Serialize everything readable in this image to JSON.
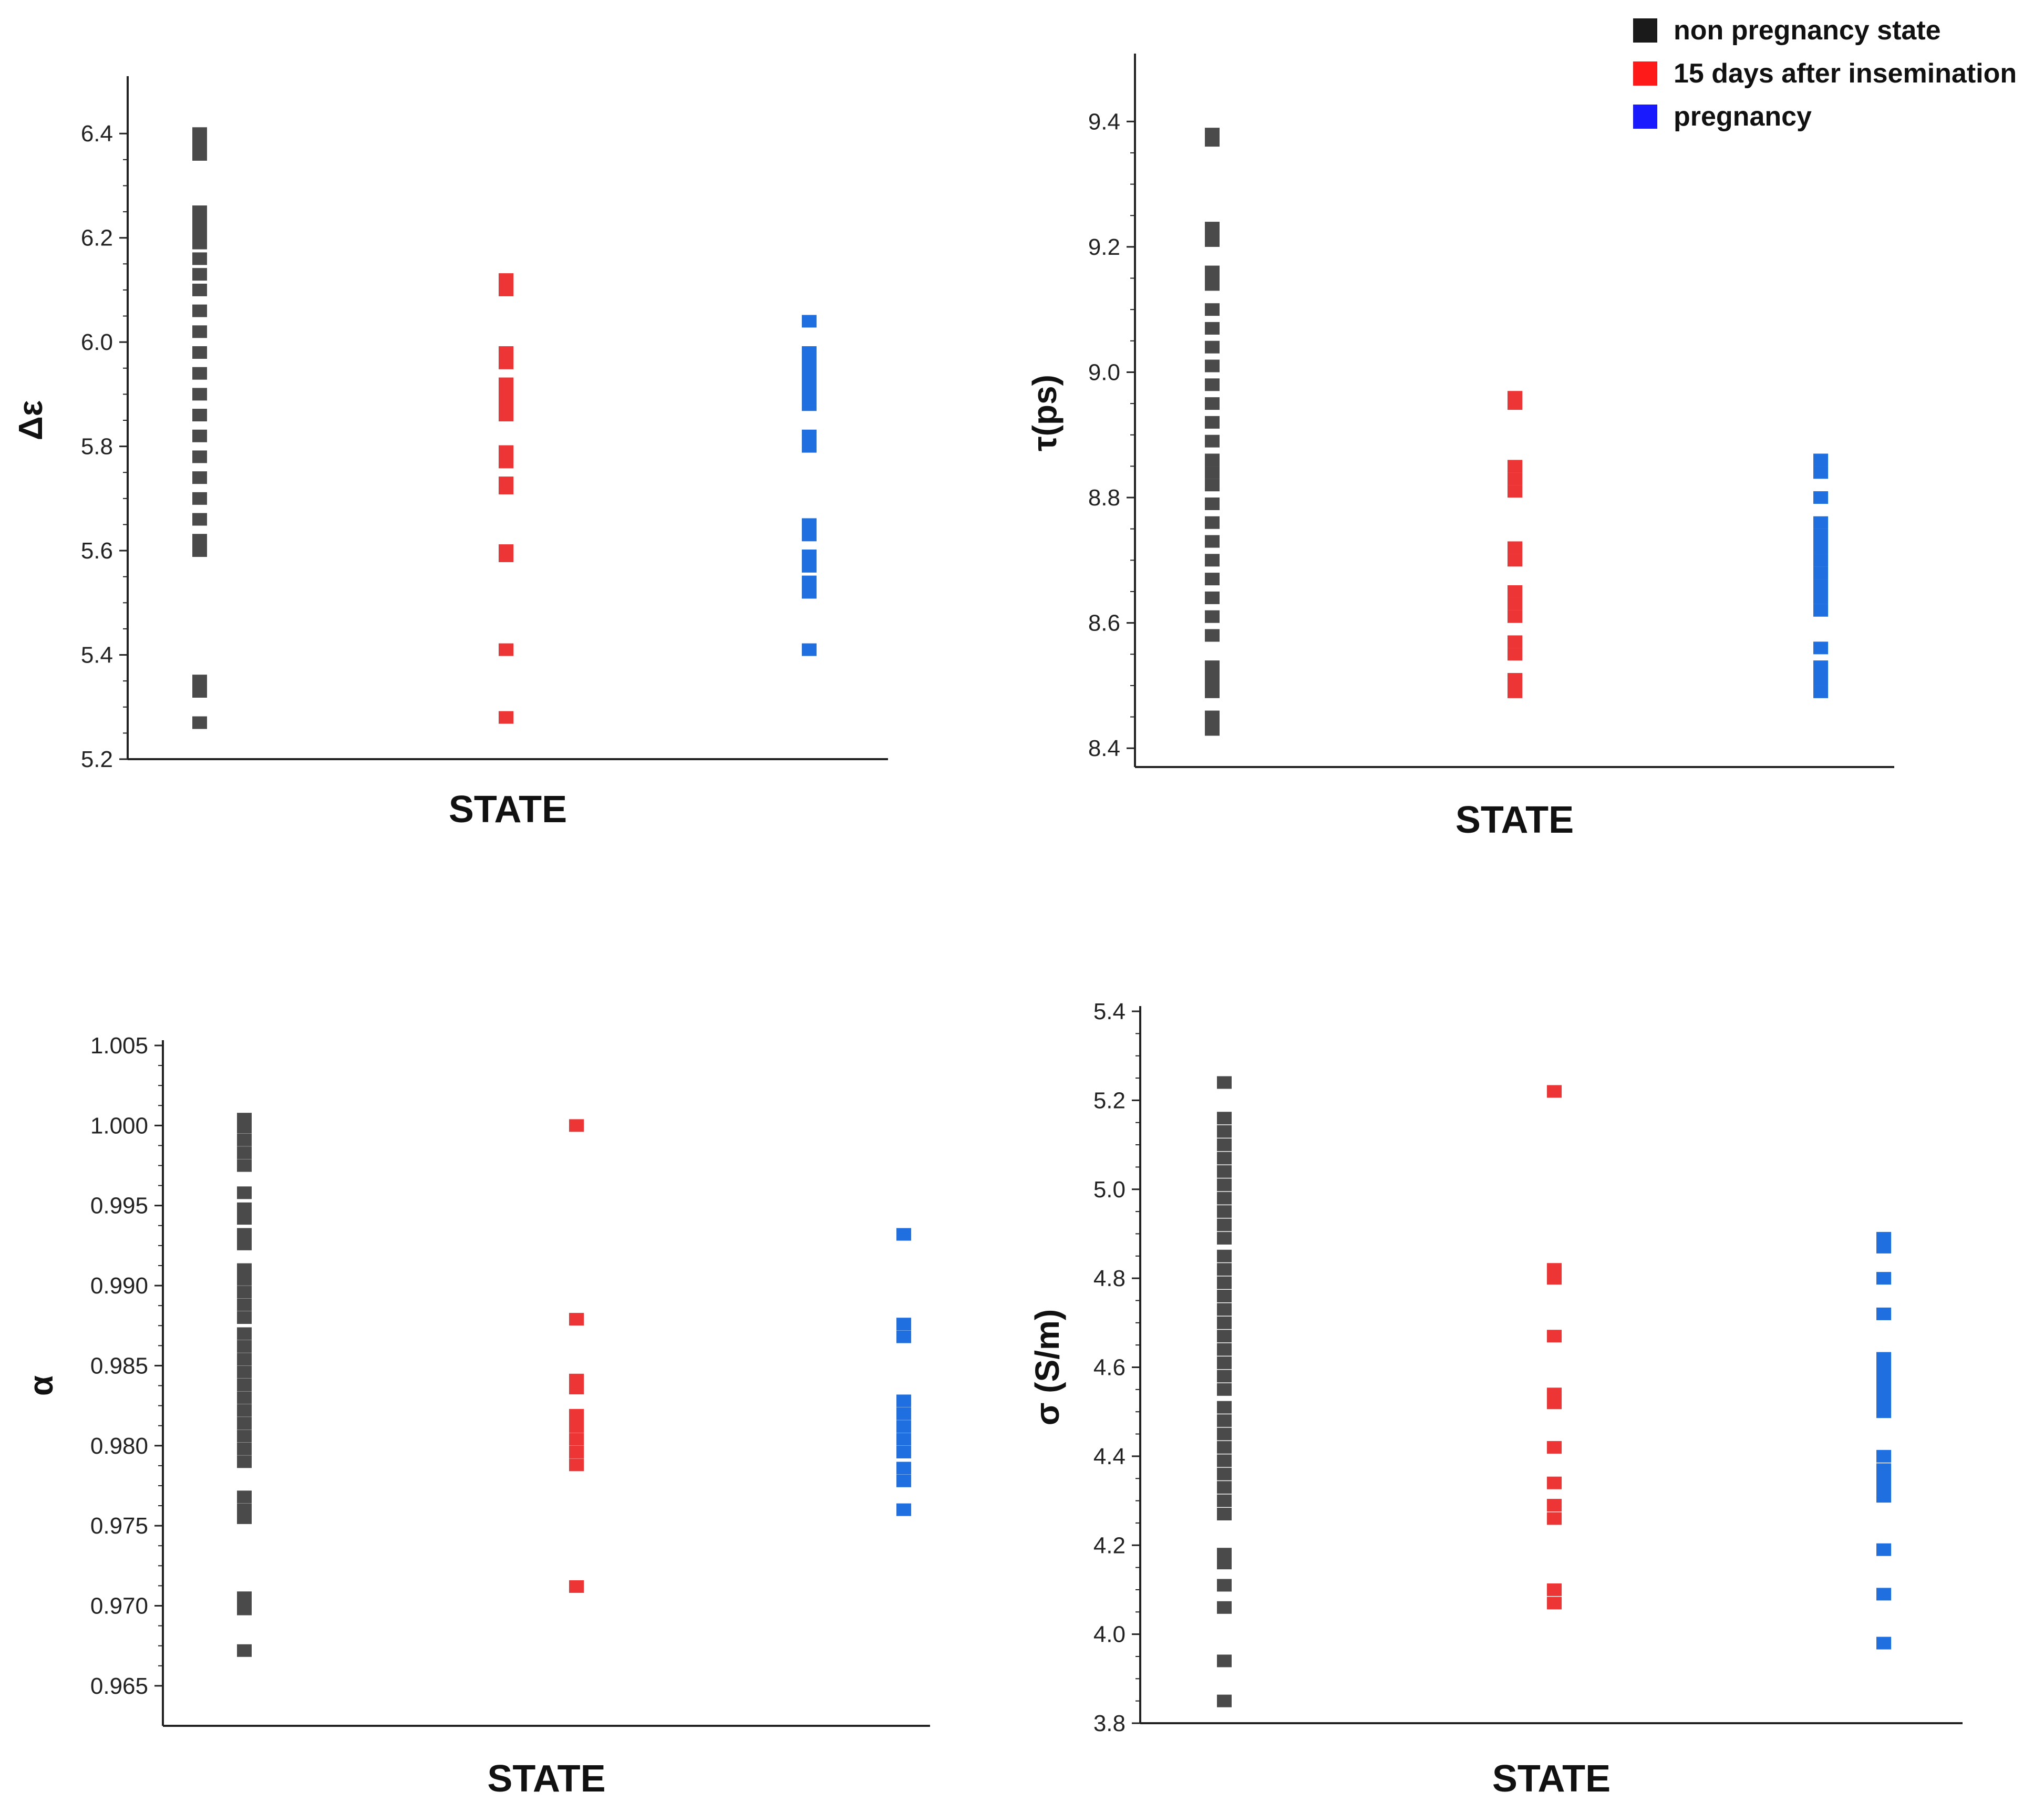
{
  "legend": [
    {
      "label": "non pregnancy state",
      "color": "#1a1a1a"
    },
    {
      "label": "15 days after insemination",
      "color": "#ff1a1a"
    },
    {
      "label": "pregnancy",
      "color": "#1a1aff"
    }
  ],
  "series_colors": [
    "#4a4a4a",
    "#ee3535",
    "#1f6fe0"
  ],
  "chart_data": [
    {
      "type": "scatter",
      "title": "",
      "xlabel": "STATE",
      "ylabel": "Δε",
      "ylim": [
        5.2,
        6.5
      ],
      "yticks": [
        5.2,
        5.4,
        5.6,
        5.8,
        6.0,
        6.2,
        6.4
      ],
      "tick_decimals": 1,
      "minor_ticks": true,
      "categories": [
        "non pregnancy state",
        "15 days after insemination",
        "pregnancy"
      ],
      "series": [
        {
          "name": "non pregnancy state",
          "values": [
            5.27,
            5.33,
            5.35,
            5.6,
            5.62,
            5.66,
            5.7,
            5.74,
            5.78,
            5.82,
            5.86,
            5.9,
            5.94,
            5.98,
            6.02,
            6.06,
            6.1,
            6.13,
            6.16,
            6.19,
            6.21,
            6.23,
            6.25,
            6.36,
            6.38,
            6.4
          ]
        },
        {
          "name": "15 days after insemination",
          "values": [
            5.28,
            5.41,
            5.59,
            5.6,
            5.72,
            5.73,
            5.77,
            5.79,
            5.86,
            5.88,
            5.9,
            5.92,
            5.96,
            5.98,
            6.1,
            6.12
          ]
        },
        {
          "name": "pregnancy",
          "values": [
            5.41,
            5.52,
            5.54,
            5.57,
            5.59,
            5.63,
            5.65,
            5.8,
            5.82,
            5.88,
            5.9,
            5.92,
            5.94,
            5.96,
            5.98,
            6.04
          ]
        }
      ]
    },
    {
      "type": "scatter",
      "title": "",
      "xlabel": "STATE",
      "ylabel": "τ(ps)",
      "ylim": [
        8.37,
        9.5
      ],
      "yticks": [
        8.4,
        8.6,
        8.8,
        9.0,
        9.2,
        9.4
      ],
      "tick_decimals": 1,
      "minor_ticks": true,
      "categories": [
        "non pregnancy state",
        "15 days after insemination",
        "pregnancy"
      ],
      "series": [
        {
          "name": "non pregnancy state",
          "values": [
            8.43,
            8.45,
            8.49,
            8.51,
            8.53,
            8.58,
            8.61,
            8.64,
            8.67,
            8.7,
            8.73,
            8.76,
            8.79,
            8.82,
            8.84,
            8.86,
            8.89,
            8.92,
            8.95,
            8.98,
            9.01,
            9.04,
            9.07,
            9.1,
            9.14,
            9.16,
            9.21,
            9.23,
            9.37,
            9.38
          ]
        },
        {
          "name": "15 days after insemination",
          "values": [
            8.49,
            8.51,
            8.55,
            8.57,
            8.61,
            8.63,
            8.65,
            8.7,
            8.72,
            8.81,
            8.83,
            8.85,
            8.95,
            8.96
          ]
        },
        {
          "name": "pregnancy",
          "values": [
            8.49,
            8.51,
            8.53,
            8.56,
            8.62,
            8.64,
            8.66,
            8.68,
            8.7,
            8.72,
            8.74,
            8.76,
            8.8,
            8.84,
            8.86
          ]
        }
      ]
    },
    {
      "type": "scatter",
      "title": "",
      "xlabel": "STATE",
      "ylabel": "α",
      "ylim": [
        0.9625,
        1.005
      ],
      "yticks": [
        0.965,
        0.97,
        0.975,
        0.98,
        0.985,
        0.99,
        0.995,
        1.0,
        1.005
      ],
      "tick_decimals": 3,
      "minor_ticks": true,
      "categories": [
        "non pregnancy state",
        "15 days after insemination",
        "pregnancy"
      ],
      "series": [
        {
          "name": "non pregnancy state",
          "values": [
            0.9672,
            0.9698,
            0.9705,
            0.9755,
            0.976,
            0.9768,
            0.979,
            0.9798,
            0.9806,
            0.9814,
            0.9822,
            0.983,
            0.9838,
            0.9846,
            0.9854,
            0.9862,
            0.987,
            0.988,
            0.9888,
            0.9896,
            0.9904,
            0.991,
            0.9926,
            0.9932,
            0.9942,
            0.9948,
            0.9958,
            0.9975,
            0.9983,
            0.9991,
            0.9999,
            1.0004
          ]
        },
        {
          "name": "15 days after insemination",
          "values": [
            0.9712,
            0.9788,
            0.9796,
            0.9804,
            0.9812,
            0.9819,
            0.9836,
            0.9841,
            0.9879,
            1.0
          ]
        },
        {
          "name": "pregnancy",
          "values": [
            0.976,
            0.9778,
            0.9786,
            0.9796,
            0.9804,
            0.9812,
            0.982,
            0.9828,
            0.9868,
            0.9876,
            0.9932
          ]
        }
      ]
    },
    {
      "type": "scatter",
      "title": "",
      "xlabel": "STATE",
      "ylabel": "σ (S/m)",
      "ylim": [
        3.8,
        5.4
      ],
      "yticks": [
        3.8,
        4.0,
        4.2,
        4.4,
        4.6,
        4.8,
        5.0,
        5.2,
        5.4
      ],
      "tick_decimals": 1,
      "minor_ticks": true,
      "categories": [
        "non pregnancy state",
        "15 days after insemination",
        "pregnancy"
      ],
      "series": [
        {
          "name": "non pregnancy state",
          "values": [
            3.85,
            3.94,
            4.06,
            4.11,
            4.16,
            4.18,
            4.27,
            4.3,
            4.33,
            4.36,
            4.39,
            4.42,
            4.45,
            4.48,
            4.51,
            4.55,
            4.58,
            4.61,
            4.64,
            4.67,
            4.7,
            4.73,
            4.76,
            4.79,
            4.82,
            4.85,
            4.89,
            4.92,
            4.95,
            4.98,
            5.01,
            5.04,
            5.07,
            5.1,
            5.13,
            5.16,
            5.24
          ]
        },
        {
          "name": "15 days after insemination",
          "values": [
            4.07,
            4.1,
            4.26,
            4.29,
            4.34,
            4.42,
            4.52,
            4.54,
            4.67,
            4.8,
            4.82,
            5.22
          ]
        },
        {
          "name": "pregnancy",
          "values": [
            3.98,
            4.09,
            4.19,
            4.31,
            4.33,
            4.35,
            4.37,
            4.4,
            4.5,
            4.52,
            4.54,
            4.56,
            4.58,
            4.6,
            4.62,
            4.72,
            4.8,
            4.87,
            4.89
          ]
        }
      ]
    }
  ]
}
